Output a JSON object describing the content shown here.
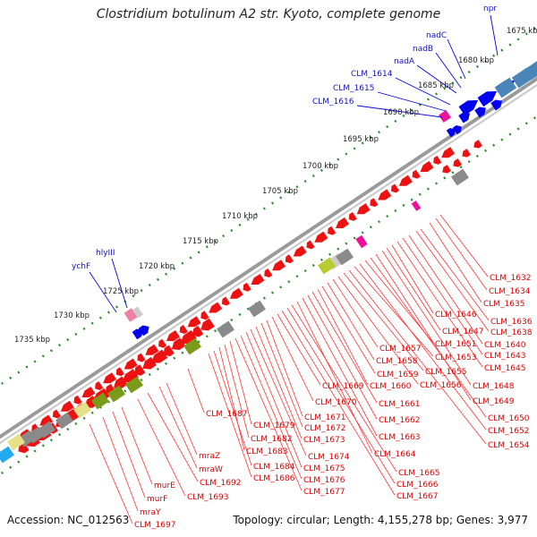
{
  "title": "Clostridium botulinum A2 str. Kyoto, complete genome",
  "accession": "Accession: NC_012563",
  "summary": "Topology: circular; Length: 4,155,278 bp; Genes: 3,977",
  "colors": {
    "background": "#ffffff",
    "backbone": "#9a9a9a",
    "tick": "#2e8b2e",
    "forward_gene": "#0000ee",
    "reverse_gene": "#ee1111",
    "blue_label": "#1010cc",
    "red_label": "#dd0000",
    "red_leader": "#ff3333",
    "steel_blue": "#4a85b8",
    "light_blue": "#22aaee",
    "olive": "#7a9a1a",
    "yellow_green": "#b8cc30",
    "khaki": "#e6e089",
    "gray": "#8a8a8a",
    "light_gray": "#cccccc",
    "pink": "#f080a0",
    "magenta": "#ee1199"
  },
  "kbp_labels": [
    "1675 kbp",
    "1680 kbp",
    "1685 kbp",
    "1690 kbp",
    "1695 kbp",
    "1700 kbp",
    "1705 kbp",
    "1710 kbp",
    "1715 kbp",
    "1720 kbp",
    "1725 kbp",
    "1730 kbp",
    "1735 kbp"
  ],
  "blue_labels": [
    "npr",
    "nadC",
    "nadB",
    "nadA",
    "CLM_1614",
    "CLM_1615",
    "CLM_1616",
    "hlyIII",
    "ychF"
  ],
  "red_labels": [
    "CLM_1632",
    "CLM_1634",
    "CLM_1635",
    "CLM_1636",
    "CLM_1638",
    "CLM_1640",
    "CLM_1643",
    "CLM_1645",
    "CLM_1646",
    "CLM_1647",
    "CLM_1648",
    "CLM_1649",
    "CLM_1650",
    "CLM_1651",
    "CLM_1652",
    "CLM_1653",
    "CLM_1654",
    "CLM_1655",
    "CLM_1656",
    "CLM_1657",
    "CLM_1658",
    "CLM_1659",
    "CLM_1660",
    "CLM_1661",
    "CLM_1662",
    "CLM_1663",
    "CLM_1664",
    "CLM_1665",
    "CLM_1666",
    "CLM_1667",
    "CLM_1669",
    "CLM_1670",
    "CLM_1671",
    "CLM_1672",
    "CLM_1673",
    "CLM_1674",
    "CLM_1675",
    "CLM_1676",
    "CLM_1677",
    "CLM_1679",
    "CLM_1682",
    "CLM_1683",
    "CLM_1684",
    "CLM_1686",
    "CLM_1687",
    "mraZ",
    "mraW",
    "CLM_1692",
    "CLM_1693",
    "murE",
    "murF",
    "mraY",
    "CLM_1697"
  ]
}
